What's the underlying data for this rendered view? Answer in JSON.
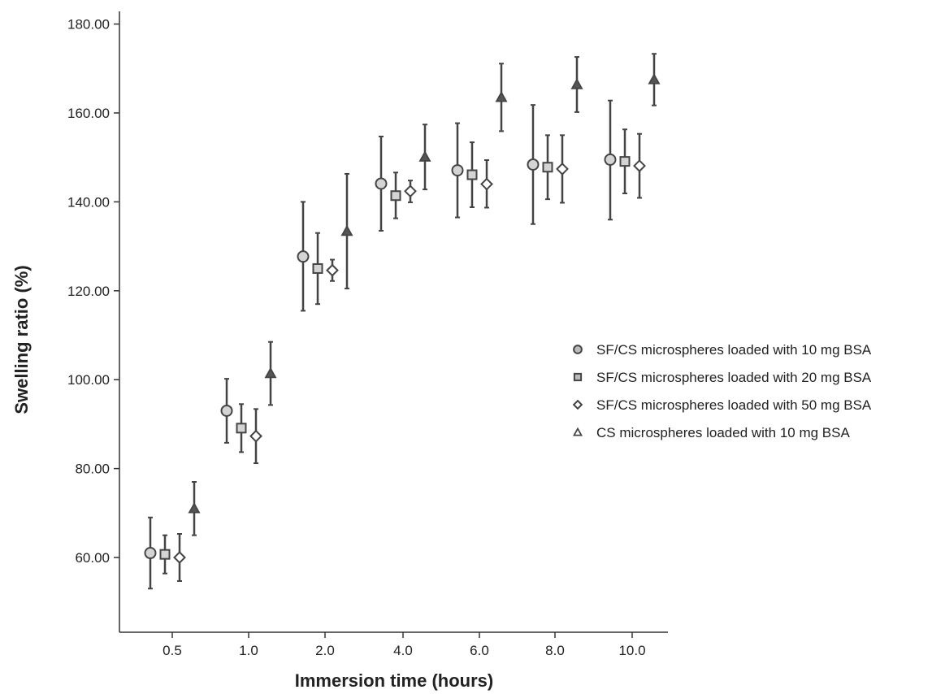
{
  "chart_data": {
    "type": "scatter",
    "xlabel": "Immersion time (hours)",
    "ylabel": "Swelling ratio (%)",
    "categories": [
      "0.5",
      "1.0",
      "2.0",
      "4.0",
      "6.0",
      "8.0",
      "10.0"
    ],
    "ylim": [
      40,
      185
    ],
    "yticks": [
      "60.00",
      "80.00",
      "100.00",
      "120.00",
      "140.00",
      "160.00",
      "180.00"
    ],
    "grid": false,
    "legend_position": "right",
    "error_bars": true,
    "series": [
      {
        "name": "SF/CS microspheres loaded with 10 mg BSA",
        "marker": "circle",
        "values": [
          61.0,
          93.0,
          127.7,
          144.1,
          147.1,
          148.4,
          149.5
        ],
        "err_low": [
          53.0,
          85.8,
          115.5,
          133.5,
          136.5,
          135.0,
          136.0
        ],
        "err_high": [
          69.0,
          100.2,
          140.0,
          154.7,
          157.7,
          161.8,
          162.8
        ]
      },
      {
        "name": "SF/CS microspheres loaded with 20 mg BSA",
        "marker": "square",
        "values": [
          60.7,
          89.1,
          125.0,
          141.4,
          146.1,
          147.8,
          149.1
        ],
        "err_low": [
          56.4,
          83.7,
          117.0,
          136.3,
          138.8,
          140.6,
          141.9
        ],
        "err_high": [
          65.0,
          94.5,
          133.0,
          146.6,
          153.4,
          155.0,
          156.3
        ]
      },
      {
        "name": "SF/CS microspheres loaded with 50 mg BSA",
        "marker": "diamond",
        "values": [
          60.0,
          87.3,
          124.6,
          142.4,
          144.0,
          147.4,
          148.1
        ],
        "err_low": [
          54.7,
          81.2,
          122.2,
          139.9,
          138.7,
          139.8,
          140.9
        ],
        "err_high": [
          65.3,
          93.4,
          127.0,
          144.8,
          149.4,
          155.0,
          155.3
        ]
      },
      {
        "name": "CS microspheres loaded with 10 mg BSA",
        "marker": "triangle",
        "values": [
          71.0,
          101.4,
          133.4,
          150.1,
          163.5,
          166.4,
          167.5
        ],
        "err_low": [
          65.0,
          94.3,
          120.5,
          142.8,
          155.9,
          160.2,
          161.7
        ],
        "err_high": [
          77.0,
          108.5,
          146.3,
          157.4,
          171.1,
          172.6,
          173.3
        ]
      }
    ]
  }
}
